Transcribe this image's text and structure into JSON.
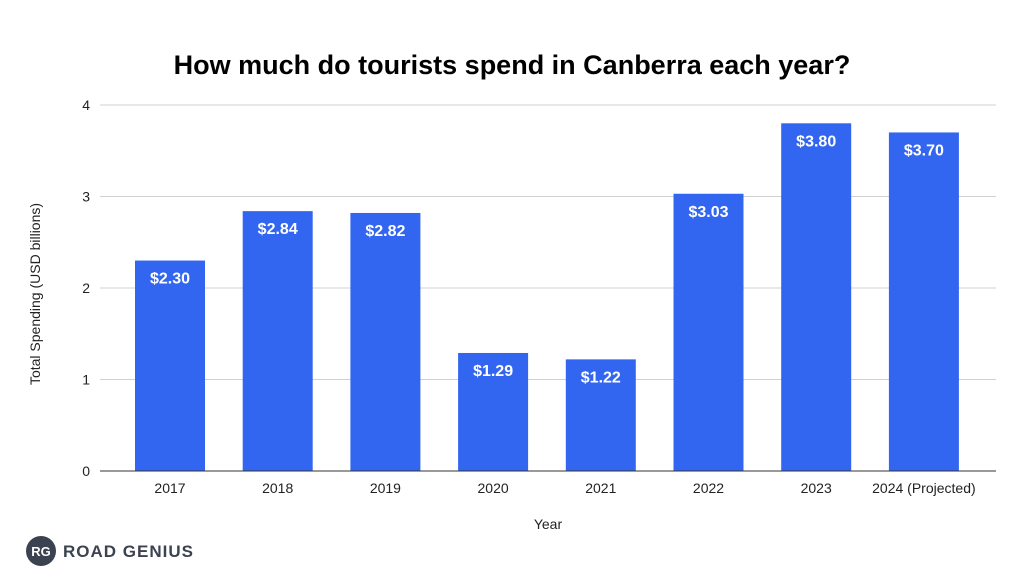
{
  "chart_data": {
    "type": "bar",
    "title": "How much do tourists spend in Canberra each year?",
    "xlabel": "Year",
    "ylabel": "Total Spending (USD billions)",
    "categories": [
      "2017",
      "2018",
      "2019",
      "2020",
      "2021",
      "2022",
      "2023",
      "2024 (Projected)"
    ],
    "values": [
      2.3,
      2.84,
      2.82,
      1.29,
      1.22,
      3.03,
      3.8,
      3.7
    ],
    "data_labels": [
      "$2.30",
      "$2.84",
      "$2.82",
      "$1.29",
      "$1.22",
      "$3.03",
      "$3.80",
      "$3.70"
    ],
    "yticks": [
      "0",
      "1",
      "2",
      "3",
      "4"
    ],
    "ylim": [
      0,
      4
    ],
    "grid": true,
    "legend": "none",
    "bar_color": "#3366f0"
  },
  "logo": {
    "badge": "RG",
    "text": "ROAD GENIUS",
    "color": "#3b4350"
  }
}
